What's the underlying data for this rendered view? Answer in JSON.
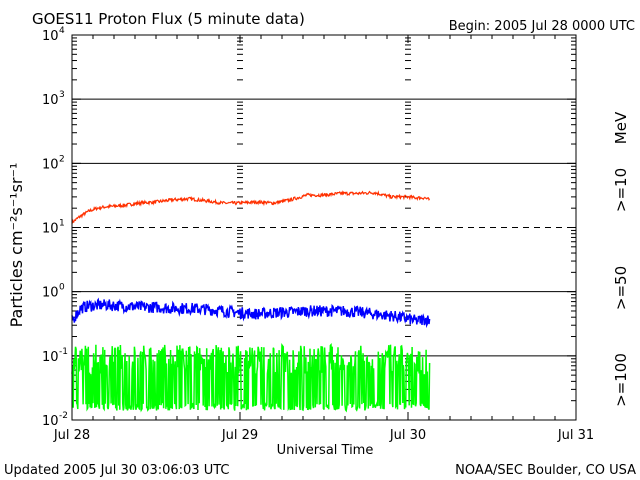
{
  "chart_data": {
    "type": "line",
    "title": "GOES11 Proton Flux (5 minute data)",
    "begin_label": "Begin: 2005 Jul 28 0000 UTC",
    "xlabel": "Universal Time",
    "ylabel": "Particles cm⁻²s⁻¹sr⁻¹",
    "footer_left": "Updated 2005 Jul 30 03:06:03 UTC",
    "footer_right": "NOAA/SEC Boulder, CO USA",
    "unit_label": "MeV",
    "x_ticks": [
      "Jul 28",
      "Jul 29",
      "Jul 30",
      "Jul 31"
    ],
    "x_range_days": [
      0,
      3
    ],
    "y_scale": "log",
    "ylim": [
      0.01,
      10000
    ],
    "y_tick_labels": [
      {
        "base": "10",
        "exp": "-2"
      },
      {
        "base": "10",
        "exp": "-1"
      },
      {
        "base": "10",
        "exp": "0"
      },
      {
        "base": "10",
        "exp": "1"
      },
      {
        "base": "10",
        "exp": "2"
      },
      {
        "base": "10",
        "exp": "3"
      },
      {
        "base": "10",
        "exp": "4"
      }
    ],
    "reference_lines": [
      {
        "value": 0.1,
        "style": "solid"
      },
      {
        "value": 1,
        "style": "solid"
      },
      {
        "value": 10,
        "style": "dashed"
      },
      {
        "value": 100,
        "style": "solid"
      },
      {
        "value": 1000,
        "style": "solid"
      }
    ],
    "series": [
      {
        "name": ">=10",
        "color": "#ff3000",
        "x": [
          0.0,
          0.05,
          0.1,
          0.15,
          0.2,
          0.3,
          0.4,
          0.5,
          0.6,
          0.7,
          0.8,
          0.9,
          1.0,
          1.1,
          1.2,
          1.3,
          1.4,
          1.5,
          1.6,
          1.7,
          1.8,
          1.9,
          2.0,
          2.05,
          2.1,
          2.13
        ],
        "values": [
          12,
          15,
          18,
          20,
          21,
          22,
          24,
          25,
          27,
          28,
          26,
          24,
          24,
          25,
          24,
          27,
          32,
          32,
          34,
          34,
          35,
          30,
          30,
          29,
          29,
          27
        ]
      },
      {
        "name": ">=50",
        "color": "#0000ff",
        "x": [
          0.0,
          0.05,
          0.1,
          0.2,
          0.3,
          0.4,
          0.5,
          0.6,
          0.7,
          0.8,
          0.9,
          1.0,
          1.1,
          1.2,
          1.3,
          1.4,
          1.5,
          1.6,
          1.7,
          1.8,
          1.9,
          2.0,
          2.05,
          2.1,
          2.13
        ],
        "values": [
          0.35,
          0.55,
          0.6,
          0.62,
          0.6,
          0.58,
          0.57,
          0.55,
          0.55,
          0.53,
          0.5,
          0.47,
          0.45,
          0.47,
          0.48,
          0.5,
          0.5,
          0.5,
          0.48,
          0.45,
          0.42,
          0.38,
          0.35,
          0.37,
          0.36
        ]
      },
      {
        "name": ">=100",
        "color": "#00ff00",
        "x": [
          0.0,
          2.13
        ],
        "values_band": [
          0.014,
          0.15
        ],
        "description": "noisy, oscillating between about 0.014 and 0.15"
      }
    ]
  }
}
